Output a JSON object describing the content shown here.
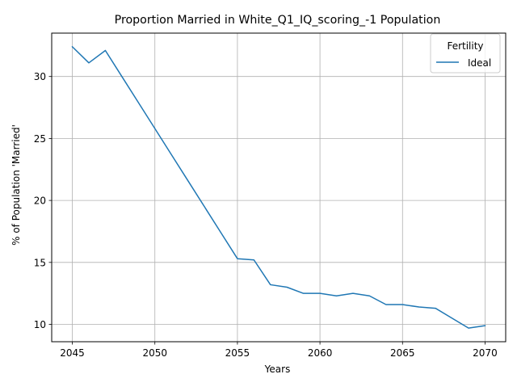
{
  "chart_data": {
    "type": "line",
    "title": "Proportion Married in White_Q1_IQ_scoring_-1 Population",
    "xlabel": "Years",
    "ylabel": "% of Population 'Married'",
    "xlim": [
      2043.75,
      2071.25
    ],
    "ylim": [
      8.6,
      33.5
    ],
    "xticks": [
      2045,
      2050,
      2055,
      2060,
      2065,
      2070
    ],
    "yticks": [
      10,
      15,
      20,
      25,
      30
    ],
    "grid": true,
    "legend": {
      "title": "Fertility",
      "placement": "top-right"
    },
    "series": [
      {
        "name": "Ideal",
        "color": "#1f77b4",
        "x": [
          2045,
          2046,
          2047,
          2048,
          2049,
          2050,
          2051,
          2052,
          2053,
          2054,
          2055,
          2056,
          2057,
          2058,
          2059,
          2060,
          2061,
          2062,
          2063,
          2064,
          2065,
          2066,
          2067,
          2068,
          2069,
          2070
        ],
        "y": [
          32.4,
          31.1,
          32.1,
          30.0,
          27.9,
          25.8,
          23.7,
          21.6,
          19.5,
          17.4,
          15.3,
          15.2,
          13.2,
          13.0,
          12.5,
          12.5,
          12.3,
          12.5,
          12.3,
          11.6,
          11.6,
          11.4,
          11.3,
          10.5,
          9.7,
          9.9
        ]
      }
    ]
  }
}
